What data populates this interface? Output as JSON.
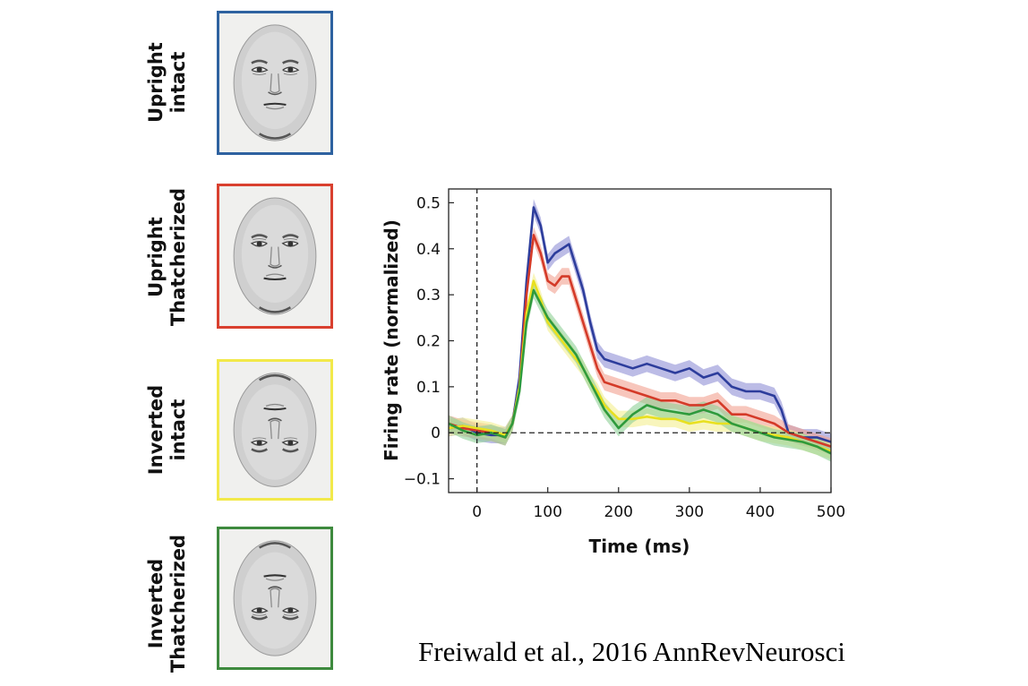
{
  "stimuli": [
    {
      "name": "upright-intact",
      "line1": "Upright",
      "line2": "intact",
      "color": "#2e62a0",
      "inverted": false,
      "thatcher": false
    },
    {
      "name": "upright-thatcherized",
      "line1": "Upright",
      "line2": "Thatcherized",
      "color": "#d9402f",
      "inverted": false,
      "thatcher": true
    },
    {
      "name": "inverted-intact",
      "line1": "Inverted",
      "line2": "intact",
      "color": "#f2e94a",
      "inverted": true,
      "thatcher": false
    },
    {
      "name": "inverted-thatcherized",
      "line1": "Inverted",
      "line2": "Thatcherized",
      "color": "#3e8a3e",
      "inverted": true,
      "thatcher": true
    }
  ],
  "chart_data": {
    "type": "line",
    "xlabel": "Time (ms)",
    "ylabel": "Firing rate (normalized)",
    "xlim": [
      -40,
      500
    ],
    "ylim": [
      -0.13,
      0.53
    ],
    "xticks": [
      0,
      100,
      200,
      300,
      400,
      500
    ],
    "xtick_labels": [
      "0",
      "100",
      "200",
      "300",
      "400",
      "500"
    ],
    "yticks": [
      -0.1,
      0,
      0.1,
      0.2,
      0.3,
      0.4,
      0.5
    ],
    "ytick_labels": [
      "−0.1",
      "0",
      "0.1",
      "0.2",
      "0.3",
      "0.4",
      "0.5"
    ],
    "reference_lines": {
      "vertical_x": 0,
      "horizontal_y": 0,
      "style": "dashed"
    },
    "grid": false,
    "legend": "none",
    "series": [
      {
        "key": "upright-intact",
        "color": "#2d3d9c",
        "band_color": "#8f8fd6",
        "points": [
          [
            -40,
            0.01
          ],
          [
            -20,
            0.015
          ],
          [
            0,
            0.0
          ],
          [
            20,
            -0.005
          ],
          [
            40,
            -0.005
          ],
          [
            50,
            0.02
          ],
          [
            60,
            0.12
          ],
          [
            70,
            0.33
          ],
          [
            80,
            0.49
          ],
          [
            90,
            0.45
          ],
          [
            100,
            0.37
          ],
          [
            110,
            0.39
          ],
          [
            120,
            0.4
          ],
          [
            130,
            0.41
          ],
          [
            140,
            0.36
          ],
          [
            150,
            0.31
          ],
          [
            160,
            0.24
          ],
          [
            170,
            0.18
          ],
          [
            180,
            0.16
          ],
          [
            200,
            0.15
          ],
          [
            220,
            0.14
          ],
          [
            240,
            0.15
          ],
          [
            260,
            0.14
          ],
          [
            280,
            0.13
          ],
          [
            300,
            0.14
          ],
          [
            320,
            0.12
          ],
          [
            340,
            0.13
          ],
          [
            360,
            0.1
          ],
          [
            380,
            0.09
          ],
          [
            400,
            0.09
          ],
          [
            420,
            0.08
          ],
          [
            430,
            0.05
          ],
          [
            440,
            0.0
          ],
          [
            460,
            -0.01
          ],
          [
            480,
            -0.01
          ],
          [
            500,
            -0.02
          ]
        ]
      },
      {
        "key": "upright-thatcherized",
        "color": "#d43a28",
        "band_color": "#f2a090",
        "points": [
          [
            -40,
            0.02
          ],
          [
            -20,
            0.01
          ],
          [
            0,
            0.005
          ],
          [
            20,
            0.0
          ],
          [
            40,
            -0.01
          ],
          [
            50,
            0.02
          ],
          [
            60,
            0.1
          ],
          [
            70,
            0.3
          ],
          [
            80,
            0.43
          ],
          [
            90,
            0.39
          ],
          [
            100,
            0.33
          ],
          [
            110,
            0.32
          ],
          [
            120,
            0.34
          ],
          [
            130,
            0.34
          ],
          [
            140,
            0.29
          ],
          [
            150,
            0.24
          ],
          [
            160,
            0.19
          ],
          [
            170,
            0.14
          ],
          [
            180,
            0.11
          ],
          [
            200,
            0.1
          ],
          [
            220,
            0.09
          ],
          [
            240,
            0.08
          ],
          [
            260,
            0.07
          ],
          [
            280,
            0.07
          ],
          [
            300,
            0.06
          ],
          [
            320,
            0.06
          ],
          [
            340,
            0.07
          ],
          [
            360,
            0.04
          ],
          [
            380,
            0.04
          ],
          [
            400,
            0.03
          ],
          [
            420,
            0.02
          ],
          [
            440,
            0.0
          ],
          [
            460,
            -0.01
          ],
          [
            480,
            -0.02
          ],
          [
            500,
            -0.03
          ]
        ]
      },
      {
        "key": "inverted-intact",
        "color": "#e8e020",
        "band_color": "#f4ef90",
        "points": [
          [
            -40,
            0.01
          ],
          [
            -20,
            0.015
          ],
          [
            0,
            0.01
          ],
          [
            20,
            0.005
          ],
          [
            40,
            -0.005
          ],
          [
            50,
            0.02
          ],
          [
            60,
            0.1
          ],
          [
            70,
            0.26
          ],
          [
            80,
            0.33
          ],
          [
            90,
            0.29
          ],
          [
            100,
            0.24
          ],
          [
            110,
            0.22
          ],
          [
            120,
            0.2
          ],
          [
            130,
            0.18
          ],
          [
            140,
            0.16
          ],
          [
            150,
            0.14
          ],
          [
            160,
            0.11
          ],
          [
            170,
            0.09
          ],
          [
            180,
            0.06
          ],
          [
            200,
            0.03
          ],
          [
            220,
            0.03
          ],
          [
            240,
            0.035
          ],
          [
            260,
            0.03
          ],
          [
            280,
            0.03
          ],
          [
            300,
            0.02
          ],
          [
            320,
            0.025
          ],
          [
            340,
            0.02
          ],
          [
            360,
            0.02
          ],
          [
            380,
            0.01
          ],
          [
            400,
            0.0
          ],
          [
            420,
            -0.005
          ],
          [
            440,
            -0.01
          ],
          [
            460,
            -0.02
          ],
          [
            480,
            -0.03
          ],
          [
            500,
            -0.04
          ]
        ]
      },
      {
        "key": "inverted-thatcherized",
        "color": "#2e9a3c",
        "band_color": "#90d098",
        "points": [
          [
            -40,
            0.02
          ],
          [
            -20,
            0.005
          ],
          [
            0,
            -0.005
          ],
          [
            20,
            0.0
          ],
          [
            40,
            -0.01
          ],
          [
            50,
            0.02
          ],
          [
            60,
            0.09
          ],
          [
            70,
            0.24
          ],
          [
            80,
            0.31
          ],
          [
            90,
            0.28
          ],
          [
            100,
            0.25
          ],
          [
            110,
            0.23
          ],
          [
            120,
            0.21
          ],
          [
            130,
            0.19
          ],
          [
            140,
            0.17
          ],
          [
            150,
            0.14
          ],
          [
            160,
            0.11
          ],
          [
            170,
            0.08
          ],
          [
            180,
            0.05
          ],
          [
            200,
            0.01
          ],
          [
            220,
            0.04
          ],
          [
            240,
            0.06
          ],
          [
            260,
            0.05
          ],
          [
            280,
            0.045
          ],
          [
            300,
            0.04
          ],
          [
            320,
            0.05
          ],
          [
            340,
            0.04
          ],
          [
            360,
            0.02
          ],
          [
            380,
            0.01
          ],
          [
            400,
            0.0
          ],
          [
            420,
            -0.01
          ],
          [
            440,
            -0.015
          ],
          [
            460,
            -0.02
          ],
          [
            480,
            -0.03
          ],
          [
            500,
            -0.045
          ]
        ]
      }
    ]
  },
  "citation": "Freiwald et al., 2016 AnnRevNeurosci"
}
